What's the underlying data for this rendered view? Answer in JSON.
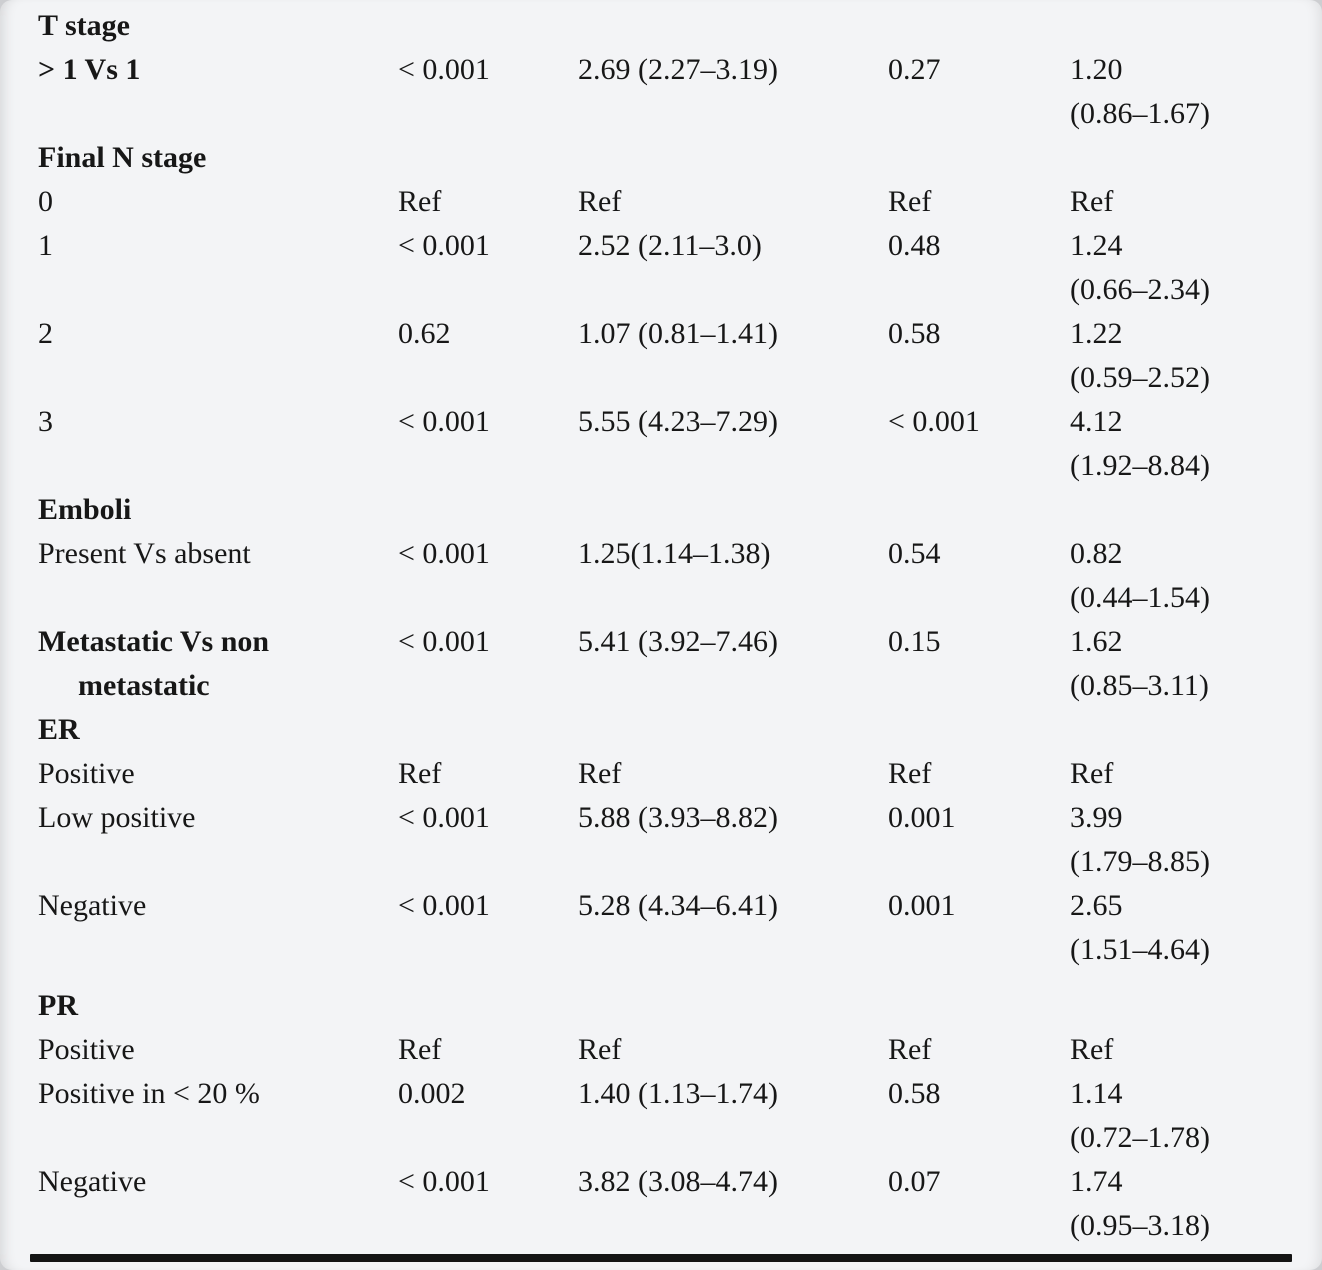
{
  "page": {
    "background_color": "#f3f4f6",
    "text_color": "#171717",
    "rule_color": "#141414"
  },
  "table": {
    "rows": [
      {
        "type": "section",
        "label": "T stage"
      },
      {
        "type": "data",
        "bold": true,
        "label": "> 1 Vs 1",
        "p1": "< 0.001",
        "hr1": "2.69 (2.27–3.19)",
        "p2": "0.27",
        "hr2": "1.20",
        "hr2_ci": "(0.86–1.67)"
      },
      {
        "type": "section",
        "label": "Final N stage"
      },
      {
        "type": "data",
        "label": "0",
        "p1": "Ref",
        "hr1": "Ref",
        "p2": "Ref",
        "hr2": "Ref"
      },
      {
        "type": "data",
        "label": "1",
        "p1": "< 0.001",
        "hr1": "2.52 (2.11–3.0)",
        "p2": "0.48",
        "hr2": "1.24",
        "hr2_ci": "(0.66–2.34)"
      },
      {
        "type": "data",
        "label": "2",
        "p1": "0.62",
        "hr1": "1.07 (0.81–1.41)",
        "p2": "0.58",
        "hr2": "1.22",
        "hr2_ci": "(0.59–2.52)"
      },
      {
        "type": "data",
        "label": "3",
        "p1": "< 0.001",
        "hr1": "5.55 (4.23–7.29)",
        "p2": "< 0.001",
        "hr2": "4.12",
        "hr2_ci": "(1.92–8.84)"
      },
      {
        "type": "section",
        "label": "Emboli"
      },
      {
        "type": "data",
        "label": "Present Vs absent",
        "p1": "< 0.001",
        "hr1": "1.25(1.14–1.38)",
        "p2": "0.54",
        "hr2": "0.82",
        "hr2_ci": "(0.44–1.54)"
      },
      {
        "type": "data",
        "bold": true,
        "label": "Metastatic Vs non",
        "label2": "metastatic",
        "p1": "< 0.001",
        "hr1": "5.41 (3.92–7.46)",
        "p2": "0.15",
        "hr2": "1.62",
        "hr2_ci": "(0.85–3.11)"
      },
      {
        "type": "section",
        "label": "ER"
      },
      {
        "type": "data",
        "label": "Positive",
        "p1": "Ref",
        "hr1": "Ref",
        "p2": "Ref",
        "hr2": "Ref"
      },
      {
        "type": "data",
        "label": "Low positive",
        "p1": "< 0.001",
        "hr1": "5.88 (3.93–8.82)",
        "p2": "0.001",
        "hr2": "3.99",
        "hr2_ci": "(1.79–8.85)"
      },
      {
        "type": "data",
        "label": "Negative",
        "p1": "< 0.001",
        "hr1": "5.28 (4.34–6.41)",
        "p2": "0.001",
        "hr2": "2.65",
        "hr2_ci": "(1.51–4.64)"
      },
      {
        "type": "section",
        "label": "PR",
        "gap_before": true
      },
      {
        "type": "data",
        "label": "Positive",
        "p1": "Ref",
        "hr1": "Ref",
        "p2": "Ref",
        "hr2": "Ref"
      },
      {
        "type": "data",
        "label": "Positive in < 20 %",
        "p1": "0.002",
        "hr1": "1.40 (1.13–1.74)",
        "p2": "0.58",
        "hr2": "1.14",
        "hr2_ci": "(0.72–1.78)"
      },
      {
        "type": "data",
        "label": "Negative",
        "p1": "< 0.001",
        "hr1": "3.82 (3.08–4.74)",
        "p2": "0.07",
        "hr2": "1.74",
        "hr2_ci": "(0.95–3.18)"
      }
    ]
  }
}
